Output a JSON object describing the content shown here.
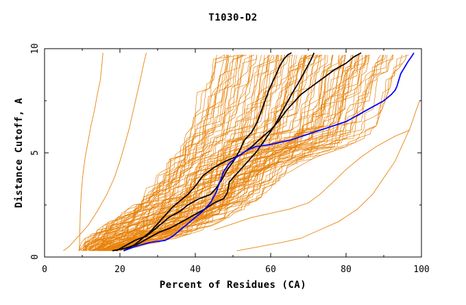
{
  "chart_data": {
    "type": "line",
    "title": "T1030-D2",
    "xlabel": "Percent of Residues (CA)",
    "ylabel": "Distance Cutoff, A",
    "xlim": [
      0,
      100
    ],
    "ylim": [
      0,
      10
    ],
    "x_ticks": [
      "0",
      "20",
      "40",
      "60",
      "80",
      "100"
    ],
    "y_ticks": [
      "0",
      "5",
      "10"
    ],
    "grid": false,
    "colors": {
      "background_models": "#e8820a",
      "reference_black": "#000000",
      "reference_blue": "#0000ff"
    },
    "background_band": {
      "color": "#e8820a",
      "lower_x": [
        9,
        10,
        14,
        18,
        22,
        25,
        27,
        29,
        31,
        32,
        33,
        34,
        35,
        36,
        37,
        38,
        39,
        40,
        41,
        43
      ],
      "upper_x": [
        20,
        33,
        42,
        48,
        53,
        57,
        60,
        63,
        67,
        72,
        80,
        86,
        88,
        89,
        90,
        91,
        92,
        93,
        95,
        97
      ],
      "y": [
        0.3,
        0.8,
        1.3,
        1.8,
        2.3,
        2.8,
        3.3,
        3.8,
        4.3,
        4.8,
        5.3,
        5.8,
        6.3,
        6.8,
        7.3,
        7.8,
        8.3,
        8.8,
        9.3,
        9.8
      ],
      "count": 110
    },
    "series": [
      {
        "color": "#e8820a",
        "x": [
          15.5,
          15.2,
          14.8,
          14,
          13.2,
          12.3,
          11.5,
          10.8,
          10.2,
          9.8,
          9.5,
          9.4,
          9.3,
          9.2
        ],
        "y": [
          9.8,
          9.2,
          8.5,
          7.8,
          7,
          6.3,
          5.5,
          4.8,
          4,
          3.2,
          2.3,
          1.5,
          0.8,
          0.3
        ]
      },
      {
        "color": "#e8820a",
        "x": [
          27,
          26.2,
          25.4,
          24.5,
          23.5,
          22.5,
          21.3,
          20,
          18.5,
          16.5,
          14,
          11.5,
          9,
          6.5,
          5
        ],
        "y": [
          9.8,
          9.2,
          8.5,
          7.8,
          7,
          6.2,
          5.4,
          4.6,
          3.8,
          3,
          2.2,
          1.5,
          1,
          0.5,
          0.3
        ]
      },
      {
        "color": "#e8820a",
        "x": [
          51,
          57,
          63,
          68,
          73,
          78,
          83,
          87,
          90,
          93,
          95,
          97,
          98.5,
          99.5
        ],
        "y": [
          0.3,
          0.5,
          0.7,
          0.9,
          1.3,
          1.7,
          2.3,
          3,
          3.8,
          4.6,
          5.4,
          6.2,
          7,
          7.5
        ]
      },
      {
        "color": "#e8820a",
        "x": [
          45,
          50,
          55,
          60,
          65,
          70,
          73,
          76,
          80,
          84,
          88,
          93,
          97
        ],
        "y": [
          1.3,
          1.6,
          1.9,
          2.1,
          2.3,
          2.6,
          3,
          3.5,
          4.2,
          4.8,
          5.3,
          5.8,
          6.1
        ]
      },
      {
        "color": "#000000",
        "x": [
          19,
          21,
          24,
          27,
          29,
          31,
          33,
          36,
          38,
          41,
          44,
          45.5,
          47,
          48.5,
          50.5,
          52,
          53,
          55,
          56.5,
          57.5,
          58.5,
          59.5,
          60.5,
          61.5,
          62.5,
          63.5,
          64.5,
          65.5
        ],
        "y": [
          0.3,
          0.5,
          0.8,
          1,
          1.3,
          1.6,
          1.9,
          2.2,
          2.5,
          2.8,
          3,
          3.3,
          3.7,
          4.2,
          4.7,
          5.2,
          5.6,
          6,
          6.5,
          7,
          7.5,
          8,
          8.4,
          8.8,
          9.2,
          9.5,
          9.7,
          9.8
        ]
      },
      {
        "color": "#000000",
        "x": [
          18,
          21,
          24.5,
          27.5,
          30.5,
          33.5,
          36.5,
          39.5,
          42.5,
          45,
          47.5,
          48.5,
          49,
          50.5,
          52,
          54,
          56,
          58,
          59.5,
          61,
          62.5,
          64,
          65.5,
          67.5,
          69,
          70.5,
          71.5
        ],
        "y": [
          0.3,
          0.4,
          0.6,
          0.9,
          1.2,
          1.4,
          1.7,
          2,
          2.3,
          2.6,
          2.8,
          3.1,
          3.6,
          3.9,
          4.2,
          4.6,
          5,
          5.5,
          5.9,
          6.3,
          6.8,
          7.3,
          7.8,
          8.4,
          8.9,
          9.4,
          9.8
        ]
      },
      {
        "color": "#000000",
        "x": [
          21,
          24,
          26,
          28,
          30,
          32,
          34,
          36,
          38,
          40,
          42,
          45,
          48,
          52,
          55,
          58,
          60,
          62,
          64,
          66,
          68,
          71,
          74,
          77,
          80,
          82,
          84
        ],
        "y": [
          0.3,
          0.6,
          0.9,
          1.2,
          1.6,
          2,
          2.4,
          2.7,
          3,
          3.4,
          3.9,
          4.3,
          4.6,
          4.9,
          5.3,
          5.8,
          6.1,
          6.5,
          7,
          7.4,
          7.8,
          8.2,
          8.6,
          9,
          9.3,
          9.6,
          9.8
        ]
      },
      {
        "color": "#0000ff",
        "x": [
          21,
          24,
          28,
          32,
          34,
          36,
          38,
          40,
          42,
          44,
          45.5,
          46.5,
          47.5,
          49,
          51,
          53.5,
          56,
          60,
          65,
          70,
          75,
          80,
          84,
          87,
          90,
          92,
          93,
          93.5,
          94,
          94.5,
          95.5,
          96.5,
          97.3,
          98
        ],
        "y": [
          0.3,
          0.5,
          0.7,
          0.8,
          1,
          1.3,
          1.6,
          1.9,
          2.2,
          2.6,
          3.1,
          3.6,
          4.1,
          4.5,
          4.8,
          5.1,
          5.3,
          5.4,
          5.6,
          5.9,
          6.2,
          6.5,
          6.9,
          7.2,
          7.5,
          7.8,
          8,
          8.2,
          8.5,
          8.8,
          9.1,
          9.4,
          9.6,
          9.8
        ]
      }
    ]
  }
}
